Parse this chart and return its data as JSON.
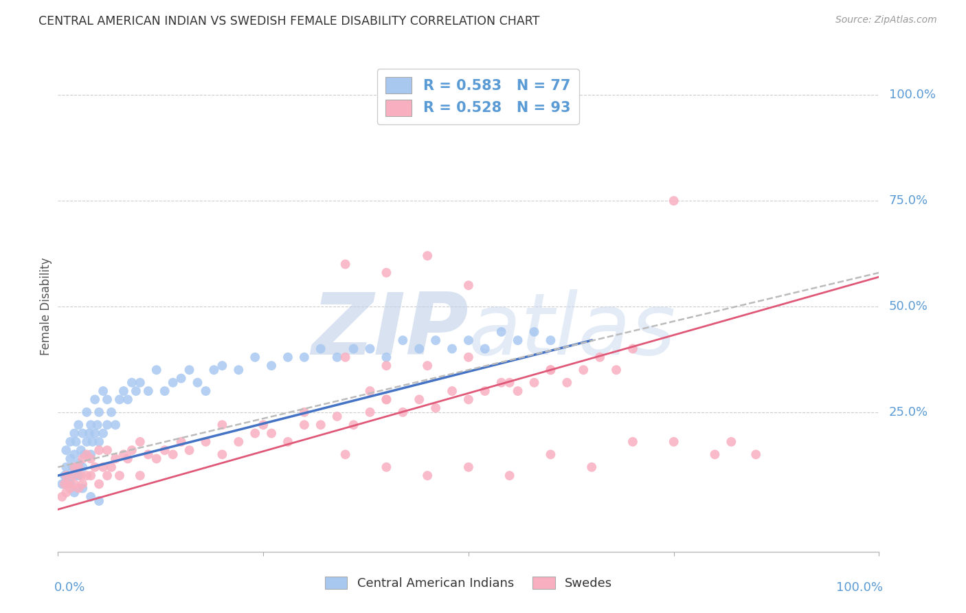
{
  "title": "CENTRAL AMERICAN INDIAN VS SWEDISH FEMALE DISABILITY CORRELATION CHART",
  "source": "Source: ZipAtlas.com",
  "ylabel": "Female Disability",
  "y_tick_labels": [
    "100.0%",
    "75.0%",
    "50.0%",
    "25.0%"
  ],
  "y_tick_positions": [
    1.0,
    0.75,
    0.5,
    0.25
  ],
  "xlim": [
    0.0,
    1.0
  ],
  "ylim": [
    -0.08,
    1.08
  ],
  "blue_R": "0.583",
  "blue_N": "77",
  "pink_R": "0.528",
  "pink_N": "93",
  "legend_label_blue": "Central American Indians",
  "legend_label_pink": "Swedes",
  "blue_color": "#A8C8F0",
  "pink_color": "#F8B0C0",
  "blue_line_color": "#4472C4",
  "pink_line_color": "#E05878",
  "dashed_line_color": "#BBBBBB",
  "title_color": "#333333",
  "source_color": "#999999",
  "axis_label_color": "#5B9BD5",
  "watermark_text": "ZIPatlas",
  "background_color": "#FFFFFF",
  "grid_color": "#CCCCCC",
  "blue_scatter_x": [
    0.005,
    0.008,
    0.01,
    0.01,
    0.012,
    0.015,
    0.015,
    0.018,
    0.02,
    0.02,
    0.02,
    0.022,
    0.025,
    0.025,
    0.028,
    0.03,
    0.03,
    0.032,
    0.035,
    0.035,
    0.038,
    0.04,
    0.04,
    0.042,
    0.045,
    0.045,
    0.048,
    0.05,
    0.05,
    0.055,
    0.055,
    0.06,
    0.06,
    0.065,
    0.07,
    0.075,
    0.08,
    0.085,
    0.09,
    0.095,
    0.1,
    0.11,
    0.12,
    0.13,
    0.14,
    0.15,
    0.16,
    0.17,
    0.18,
    0.19,
    0.2,
    0.22,
    0.24,
    0.26,
    0.28,
    0.3,
    0.32,
    0.34,
    0.36,
    0.38,
    0.4,
    0.42,
    0.44,
    0.46,
    0.48,
    0.5,
    0.52,
    0.54,
    0.56,
    0.58,
    0.6,
    0.015,
    0.02,
    0.025,
    0.03,
    0.04,
    0.05
  ],
  "blue_scatter_y": [
    0.08,
    0.1,
    0.12,
    0.16,
    0.1,
    0.14,
    0.18,
    0.12,
    0.1,
    0.15,
    0.2,
    0.18,
    0.13,
    0.22,
    0.16,
    0.12,
    0.2,
    0.15,
    0.18,
    0.25,
    0.2,
    0.15,
    0.22,
    0.18,
    0.2,
    0.28,
    0.22,
    0.18,
    0.25,
    0.2,
    0.3,
    0.22,
    0.28,
    0.25,
    0.22,
    0.28,
    0.3,
    0.28,
    0.32,
    0.3,
    0.32,
    0.3,
    0.35,
    0.3,
    0.32,
    0.33,
    0.35,
    0.32,
    0.3,
    0.35,
    0.36,
    0.35,
    0.38,
    0.36,
    0.38,
    0.38,
    0.4,
    0.38,
    0.4,
    0.4,
    0.38,
    0.42,
    0.4,
    0.42,
    0.4,
    0.42,
    0.4,
    0.44,
    0.42,
    0.44,
    0.42,
    0.08,
    0.06,
    0.1,
    0.07,
    0.05,
    0.04
  ],
  "pink_scatter_x": [
    0.005,
    0.008,
    0.01,
    0.01,
    0.012,
    0.015,
    0.018,
    0.02,
    0.02,
    0.025,
    0.025,
    0.028,
    0.03,
    0.03,
    0.035,
    0.035,
    0.04,
    0.04,
    0.045,
    0.05,
    0.05,
    0.055,
    0.06,
    0.06,
    0.065,
    0.07,
    0.075,
    0.08,
    0.085,
    0.09,
    0.1,
    0.1,
    0.11,
    0.12,
    0.13,
    0.14,
    0.15,
    0.16,
    0.18,
    0.2,
    0.2,
    0.22,
    0.24,
    0.25,
    0.26,
    0.28,
    0.3,
    0.3,
    0.32,
    0.34,
    0.36,
    0.38,
    0.4,
    0.42,
    0.44,
    0.46,
    0.48,
    0.5,
    0.52,
    0.54,
    0.56,
    0.58,
    0.6,
    0.62,
    0.64,
    0.66,
    0.68,
    0.7,
    0.35,
    0.4,
    0.45,
    0.5,
    0.55,
    0.6,
    0.35,
    0.4,
    0.45,
    0.5,
    0.55,
    0.6,
    0.65,
    0.7,
    0.75,
    0.8,
    0.82,
    0.85,
    0.35,
    0.4,
    0.45,
    0.5,
    0.38,
    0.4,
    0.75
  ],
  "pink_scatter_y": [
    0.05,
    0.08,
    0.06,
    0.1,
    0.08,
    0.07,
    0.1,
    0.08,
    0.12,
    0.07,
    0.12,
    0.1,
    0.08,
    0.14,
    0.1,
    0.15,
    0.1,
    0.14,
    0.12,
    0.08,
    0.16,
    0.12,
    0.1,
    0.16,
    0.12,
    0.14,
    0.1,
    0.15,
    0.14,
    0.16,
    0.1,
    0.18,
    0.15,
    0.14,
    0.16,
    0.15,
    0.18,
    0.16,
    0.18,
    0.15,
    0.22,
    0.18,
    0.2,
    0.22,
    0.2,
    0.18,
    0.22,
    0.25,
    0.22,
    0.24,
    0.22,
    0.25,
    0.28,
    0.25,
    0.28,
    0.26,
    0.3,
    0.28,
    0.3,
    0.32,
    0.3,
    0.32,
    0.35,
    0.32,
    0.35,
    0.38,
    0.35,
    0.4,
    0.38,
    0.36,
    0.36,
    0.38,
    0.32,
    0.35,
    0.15,
    0.12,
    0.1,
    0.12,
    0.1,
    0.15,
    0.12,
    0.18,
    0.18,
    0.15,
    0.18,
    0.15,
    0.6,
    0.58,
    0.62,
    0.55,
    0.3,
    0.28,
    0.75
  ],
  "blue_line_x": [
    0.0,
    0.65
  ],
  "blue_line_y": [
    0.1,
    0.42
  ],
  "pink_line_x": [
    0.0,
    1.0
  ],
  "pink_line_y": [
    0.02,
    0.57
  ],
  "dashed_line_x": [
    0.0,
    1.0
  ],
  "dashed_line_y": [
    0.12,
    0.58
  ]
}
